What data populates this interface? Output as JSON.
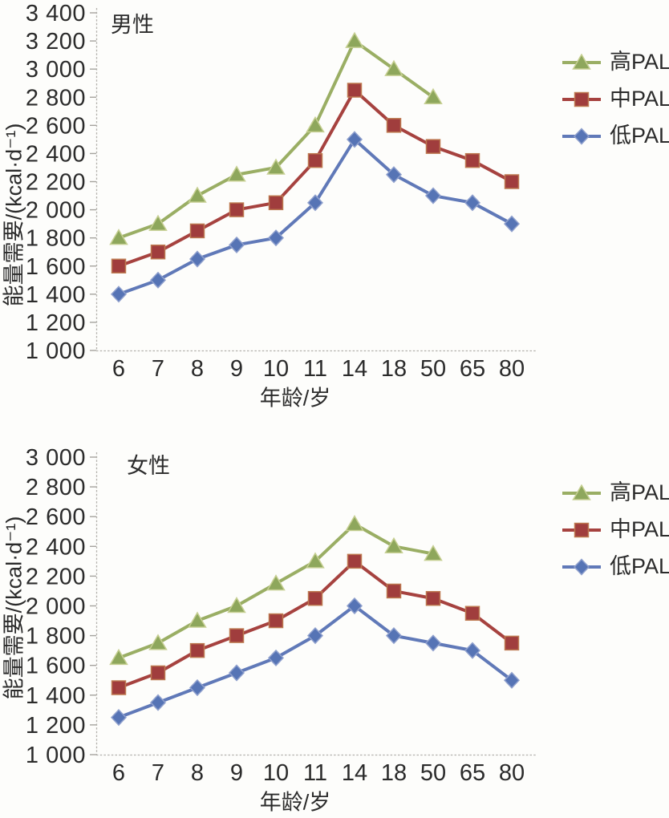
{
  "figure": {
    "description_colors": {
      "text": "#2b2b2b",
      "axis": "#b3b1ac",
      "background": "#fdfdfb"
    }
  },
  "chart_data": [
    {
      "type": "line",
      "title": "男性",
      "xlabel": "年龄/岁",
      "ylabel": "能量需要/(kcal·d⁻¹)",
      "categories": [
        "6",
        "7",
        "8",
        "9",
        "10",
        "11",
        "14",
        "18",
        "50",
        "65",
        "80"
      ],
      "ylim": [
        1000,
        3400
      ],
      "ytick_step": 200,
      "grid": false,
      "legend_position": "right",
      "series": [
        {
          "name": "高PAL",
          "slug": "high-pal",
          "marker": "triangle",
          "color": "#9aae64",
          "marker_fill": "#8ea75c",
          "marker_edge": "#c6cf92",
          "values": [
            1800,
            1900,
            2100,
            2250,
            2300,
            2600,
            3200,
            3000,
            2800,
            null,
            null
          ]
        },
        {
          "name": "中PAL",
          "slug": "mid-pal",
          "marker": "square",
          "color": "#a6423f",
          "marker_fill": "#a03d3d",
          "marker_edge": "#bd7950",
          "values": [
            1600,
            1700,
            1850,
            2000,
            2050,
            2350,
            2850,
            2600,
            2450,
            2350,
            2200
          ]
        },
        {
          "name": "低PAL",
          "slug": "low-pal",
          "marker": "diamond",
          "color": "#6079b8",
          "marker_fill": "#5674b5",
          "marker_edge": "#8fa0cd",
          "values": [
            1400,
            1500,
            1650,
            1750,
            1800,
            2050,
            2500,
            2250,
            2100,
            2050,
            1900
          ]
        }
      ]
    },
    {
      "type": "line",
      "title": "女性",
      "xlabel": "年龄/岁",
      "ylabel": "能量需要/(kcal·d⁻¹)",
      "categories": [
        "6",
        "7",
        "8",
        "9",
        "10",
        "11",
        "14",
        "18",
        "50",
        "65",
        "80"
      ],
      "ylim": [
        1000,
        3000
      ],
      "ytick_step": 200,
      "grid": false,
      "legend_position": "right",
      "series": [
        {
          "name": "高PAL",
          "slug": "high-pal",
          "marker": "triangle",
          "color": "#9aae64",
          "marker_fill": "#8ea75c",
          "marker_edge": "#c6cf92",
          "values": [
            1650,
            1750,
            1900,
            2000,
            2150,
            2300,
            2550,
            2400,
            2350,
            null,
            null
          ]
        },
        {
          "name": "中PAL",
          "slug": "mid-pal",
          "marker": "square",
          "color": "#a6423f",
          "marker_fill": "#a03d3d",
          "marker_edge": "#bd7950",
          "values": [
            1450,
            1550,
            1700,
            1800,
            1900,
            2050,
            2300,
            2100,
            2050,
            1950,
            1750
          ]
        },
        {
          "name": "低PAL",
          "slug": "low-pal",
          "marker": "diamond",
          "color": "#6079b8",
          "marker_fill": "#5674b5",
          "marker_edge": "#8fa0cd",
          "values": [
            1250,
            1350,
            1450,
            1550,
            1650,
            1800,
            2000,
            1800,
            1750,
            1700,
            1500
          ]
        }
      ]
    }
  ]
}
